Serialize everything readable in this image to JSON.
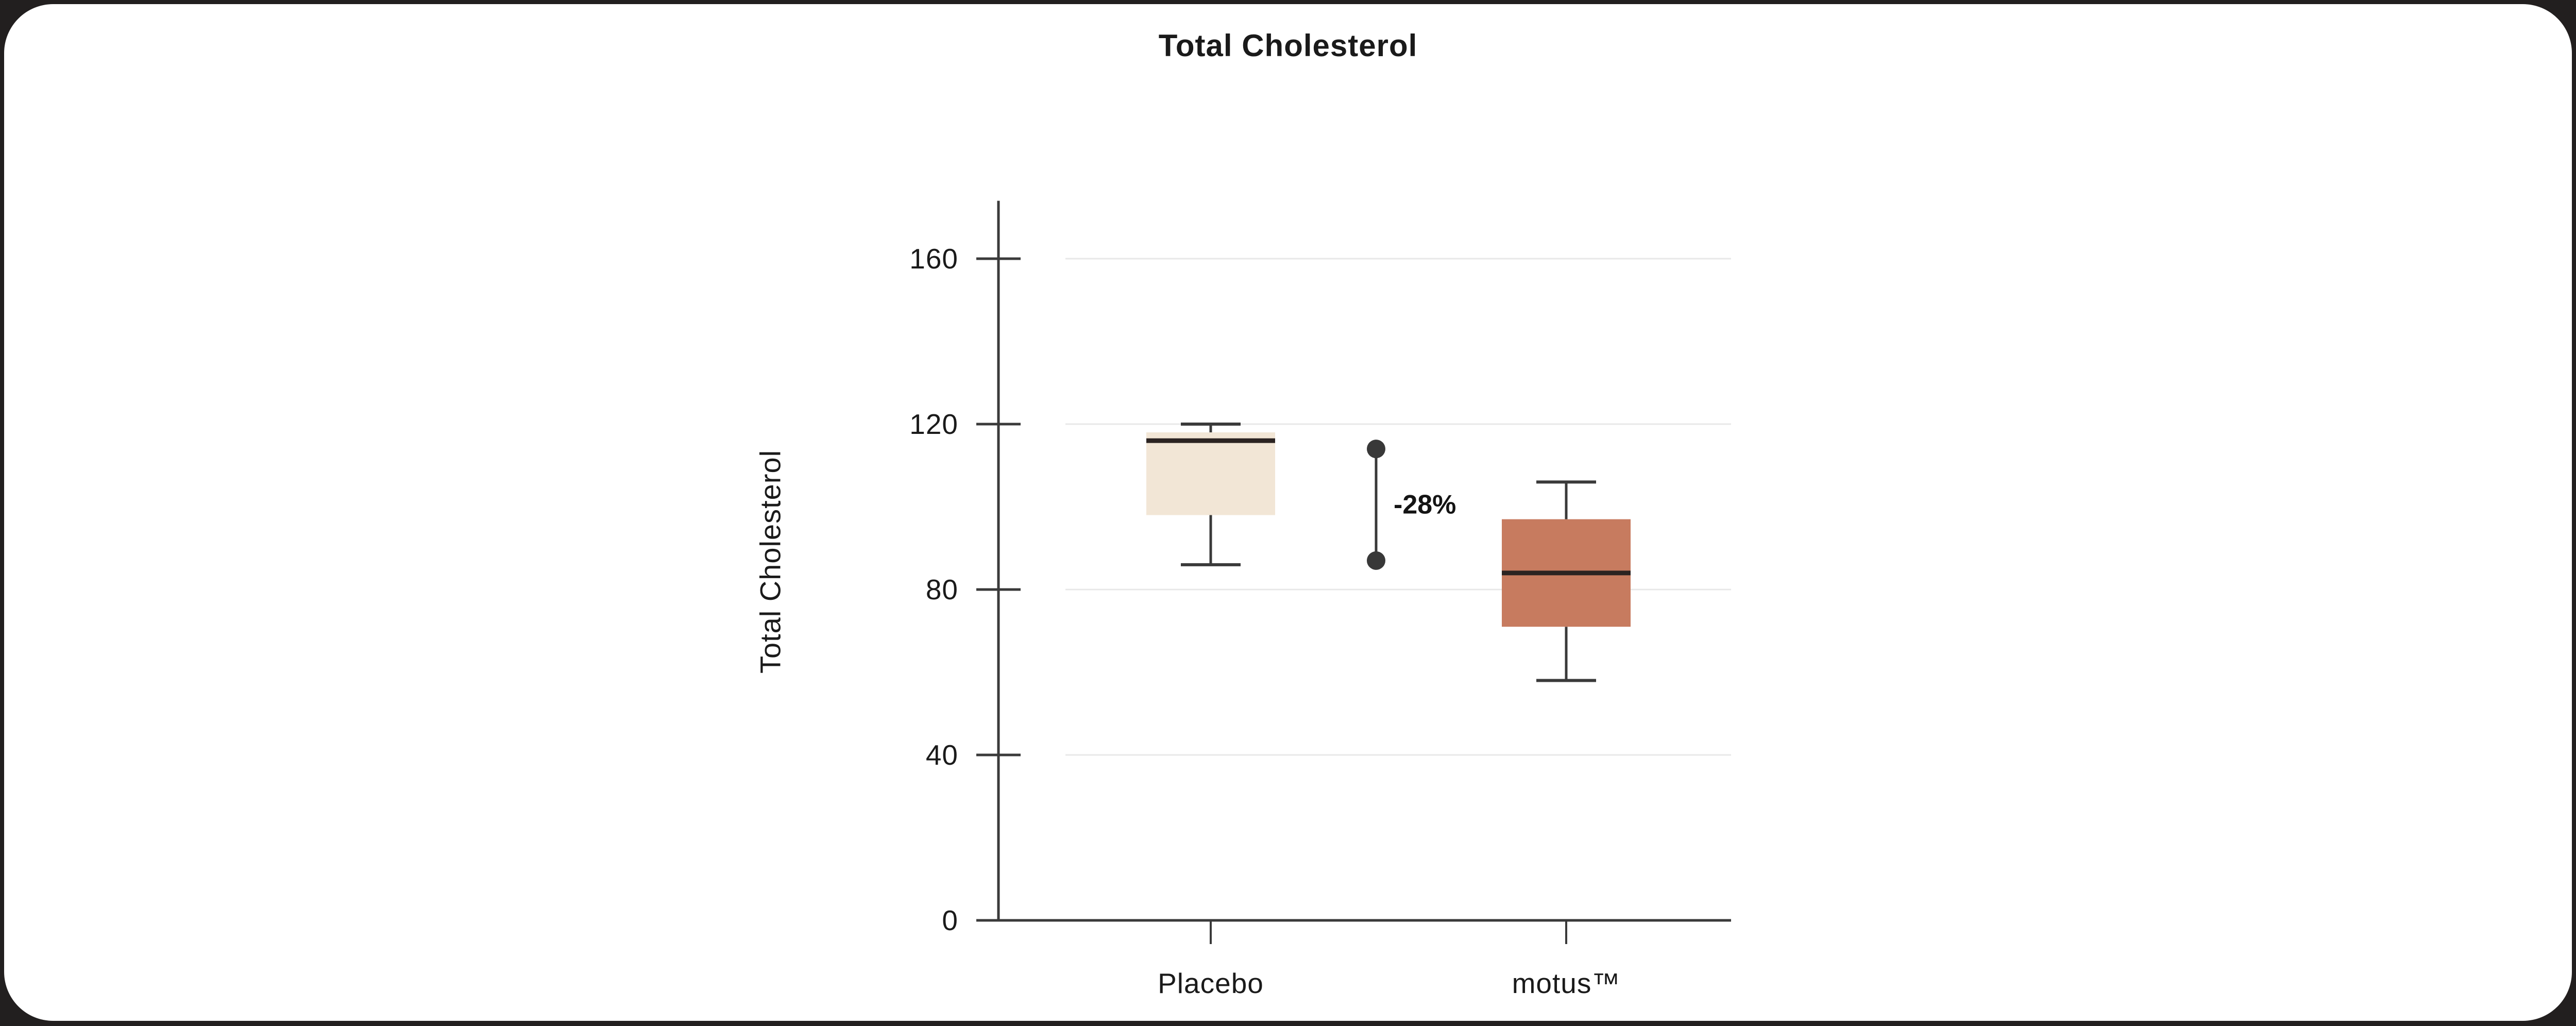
{
  "page": {
    "background_color": "#221f1f",
    "card_color": "#ffffff"
  },
  "chart_data": {
    "type": "box",
    "title": "Total Cholesterol",
    "ylabel": "Total Cholesterol",
    "xlabel": "",
    "categories": [
      "Placebo",
      "motus™"
    ],
    "series": [
      {
        "name": "Placebo",
        "whisker_low": 86,
        "q1": 98,
        "median": 116,
        "q3": 118,
        "whisker_high": 120,
        "fill": "#f2e6d6"
      },
      {
        "name": "motus™",
        "whisker_low": 58,
        "q1": 71,
        "median": 84,
        "q3": 97,
        "whisker_high": 106,
        "fill": "#c77b5f"
      }
    ],
    "annotation": {
      "label": "-28%",
      "dot_top_value": 114,
      "dot_bottom_value": 87,
      "color": "#383838"
    },
    "yticks": [
      0,
      40,
      80,
      120,
      160
    ],
    "ylim": [
      0,
      174
    ],
    "grid": "horizontal-light",
    "legend_position": "none",
    "colors": {
      "axis": "#3a3a3a",
      "grid": "#e8e8e8",
      "text": "#1a1a1a",
      "median_line": "#2b2321"
    }
  }
}
